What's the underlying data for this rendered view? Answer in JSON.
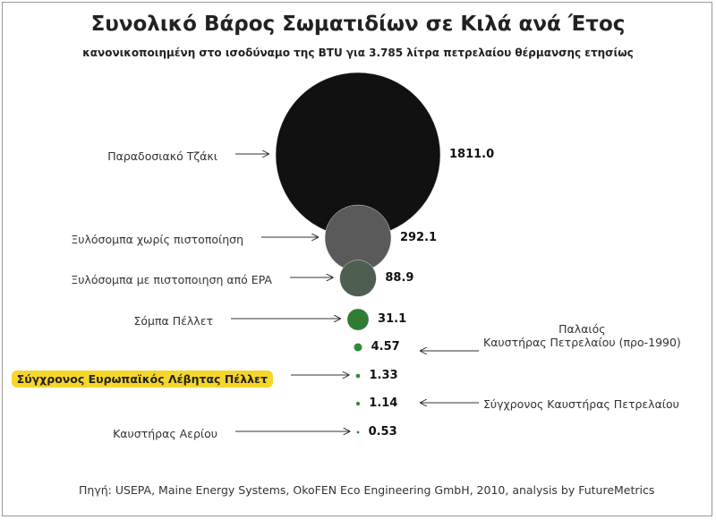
{
  "chart_data": {
    "type": "bubble",
    "title": "Συνολικό Βάρος Σωματιδίων σε Κιλά ανά Έτος",
    "subtitle": "κανονικοποιημένη στο ισοδύναμο της BTU για 3.785 λίτρα πετρελαίου θέρμανσης ετησίως",
    "categories": [
      "Παραδοσιακό Τζάκι",
      "Ξυλόσομπα  χωρίς πιστοποίηση",
      "Ξυλόσομπα με πιστοποιηση από EPA",
      "Σόμπα Πέλλετ",
      "Παλαιός\nΚαυστήρας Πετρελαίου (προ-1990)",
      "Σύγχρονος Ευρωπαϊκός Λέβητας Πέλλετ",
      "Σύγχρονος Καυστήρας Πετρελαίου",
      "Καυστήρας Αερίου"
    ],
    "values": [
      1811.0,
      292.1,
      88.9,
      31.1,
      4.57,
      1.33,
      1.14,
      0.53
    ],
    "value_labels": [
      "1811.0",
      "292.1",
      "88.9",
      "31.1",
      "4.57",
      "1.33",
      "1.14",
      "0.53"
    ],
    "colors": [
      "#111111",
      "#5a5a5a",
      "#4e5e50",
      "#2e7d32",
      "#2e8b3a",
      "#2e8b3a",
      "#2e8b3a",
      "#2e8b3a"
    ],
    "source": "Πηγή: USEPA, Maine Energy Systems, OkoFEN Eco Engineering GmbH, 2010, analysis by FutureMetrics"
  }
}
